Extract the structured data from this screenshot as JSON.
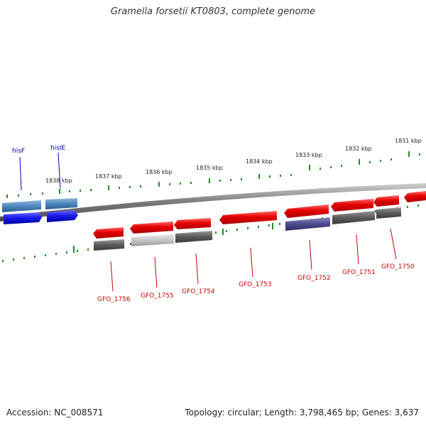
{
  "title": "Gramella forsetii KT0803, complete genome",
  "footer": {
    "accession": "Accession: NC_008571",
    "topology": "Topology: circular; Length: 3,798,465 bp; Genes: 3,637"
  },
  "colors": {
    "forward_strand": "#e60000",
    "reverse_strand": "#1a1aee",
    "reverse_strand_rna": "#4d86bd",
    "grey_feature": "#5a5a5a",
    "light_grey_feature": "#bdbdbd",
    "purple_feature": "#4b4a8e",
    "tick": "#228b22"
  },
  "kbp_labels": [
    "1838 kbp",
    "1837 kbp",
    "1836 kbp",
    "1835 kbp",
    "1834 kbp",
    "1833 kbp",
    "1832 kbp",
    "1831 kbp"
  ],
  "genes_top": [
    "hisF",
    "hisIE"
  ],
  "genes_bottom": [
    "GFO_1756",
    "GFO_1755",
    "GFO_1754",
    "GFO_1753",
    "GFO_1752",
    "GFO_1751",
    "GFO_1750"
  ]
}
